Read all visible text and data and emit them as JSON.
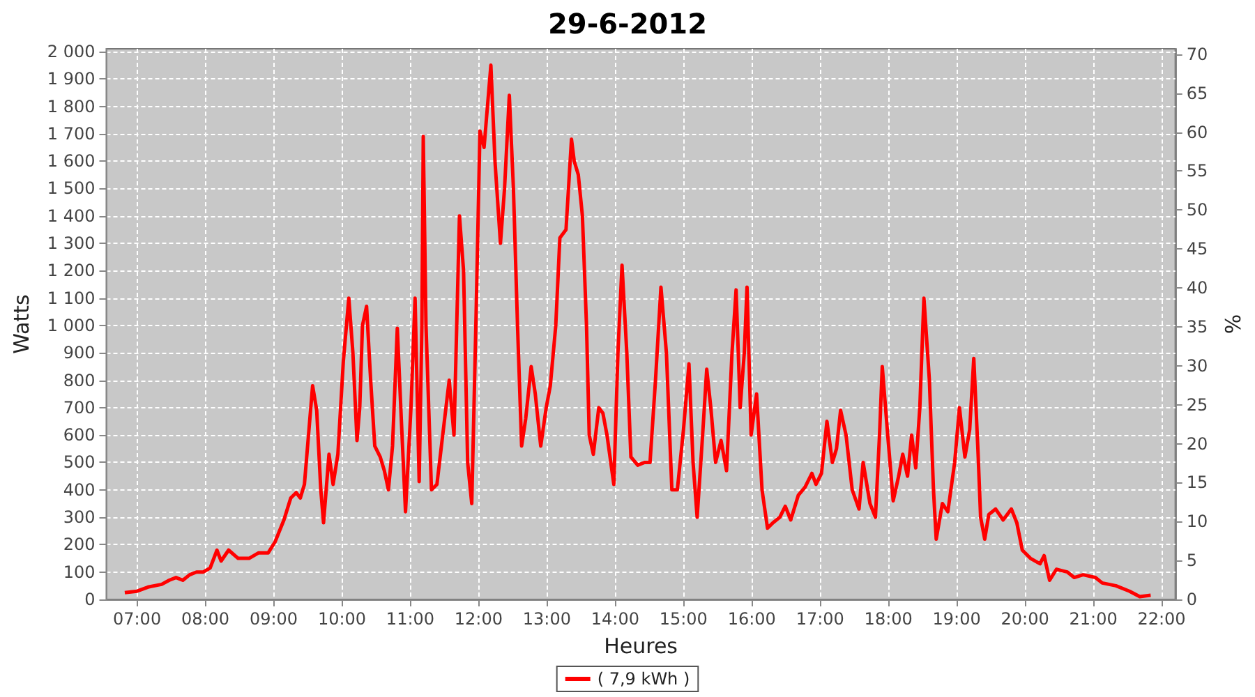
{
  "chart_data": {
    "type": "line",
    "title": "29-6-2012",
    "xlabel": "Heures",
    "ylabel": "Watts",
    "y2label": "%",
    "xlim": [
      6.55,
      22.2
    ],
    "xticks": [
      {
        "value": 7,
        "label": "07:00"
      },
      {
        "value": 8,
        "label": "08:00"
      },
      {
        "value": 9,
        "label": "09:00"
      },
      {
        "value": 10,
        "label": "10:00"
      },
      {
        "value": 11,
        "label": "11:00"
      },
      {
        "value": 12,
        "label": "12:00"
      },
      {
        "value": 13,
        "label": "13:00"
      },
      {
        "value": 14,
        "label": "14:00"
      },
      {
        "value": 15,
        "label": "15:00"
      },
      {
        "value": 16,
        "label": "16:00"
      },
      {
        "value": 17,
        "label": "17:00"
      },
      {
        "value": 18,
        "label": "18:00"
      },
      {
        "value": 19,
        "label": "19:00"
      },
      {
        "value": 20,
        "label": "20:00"
      },
      {
        "value": 21,
        "label": "21:00"
      },
      {
        "value": 22,
        "label": "22:00"
      }
    ],
    "ylim": [
      0,
      2010
    ],
    "yticks": [
      0,
      100,
      200,
      300,
      400,
      500,
      600,
      700,
      800,
      900,
      {
        "value": 1000,
        "label": "1 000"
      },
      {
        "value": 1100,
        "label": "1 100"
      },
      {
        "value": 1200,
        "label": "1 200"
      },
      {
        "value": 1300,
        "label": "1 300"
      },
      {
        "value": 1400,
        "label": "1 400"
      },
      {
        "value": 1500,
        "label": "1 500"
      },
      {
        "value": 1600,
        "label": "1 600"
      },
      {
        "value": 1700,
        "label": "1 700"
      },
      {
        "value": 1800,
        "label": "1 800"
      },
      {
        "value": 1900,
        "label": "1 900"
      },
      {
        "value": 2000,
        "label": "2 000"
      }
    ],
    "y2lim": [
      0,
      70.7
    ],
    "y2ticks": [
      0,
      5,
      10,
      15,
      20,
      25,
      30,
      35,
      40,
      45,
      50,
      55,
      60,
      65,
      70
    ],
    "grid": true,
    "legend": "bottom",
    "marker": "none",
    "line_style": "solid",
    "series": [
      {
        "name": "( 7,9 kWh )",
        "color": "#ff0000",
        "x": [
          6.82,
          7.0,
          7.16,
          7.36,
          7.47,
          7.57,
          7.67,
          7.77,
          7.87,
          7.97,
          8.07,
          8.17,
          8.23,
          8.34,
          8.48,
          8.64,
          8.78,
          8.92,
          9.02,
          9.15,
          9.25,
          9.33,
          9.39,
          9.45,
          9.53,
          9.57,
          9.63,
          9.69,
          9.73,
          9.81,
          9.87,
          9.94,
          10.02,
          10.1,
          10.16,
          10.22,
          10.26,
          10.3,
          10.36,
          10.42,
          10.48,
          10.56,
          10.62,
          10.68,
          10.74,
          10.81,
          10.87,
          10.93,
          11.01,
          11.07,
          11.13,
          11.17,
          11.19,
          11.23,
          11.31,
          11.39,
          11.47,
          11.57,
          11.64,
          11.72,
          11.78,
          11.84,
          11.9,
          11.96,
          12.02,
          12.08,
          12.18,
          12.24,
          12.32,
          12.38,
          12.45,
          12.51,
          12.57,
          12.63,
          12.69,
          12.77,
          12.83,
          12.91,
          12.99,
          13.05,
          13.13,
          13.19,
          13.28,
          13.36,
          13.4,
          13.46,
          13.52,
          13.58,
          13.62,
          13.68,
          13.76,
          13.82,
          13.88,
          13.98,
          14.04,
          14.1,
          14.17,
          14.23,
          14.33,
          14.43,
          14.51,
          14.59,
          14.67,
          14.75,
          14.83,
          14.91,
          15.0,
          15.08,
          15.14,
          15.2,
          15.28,
          15.34,
          15.4,
          15.47,
          15.55,
          15.63,
          15.71,
          15.77,
          15.83,
          15.89,
          15.93,
          15.99,
          16.07,
          16.15,
          16.23,
          16.31,
          16.41,
          16.49,
          16.57,
          16.68,
          16.78,
          16.88,
          16.94,
          17.02,
          17.1,
          17.18,
          17.24,
          17.3,
          17.38,
          17.47,
          17.57,
          17.63,
          17.73,
          17.81,
          17.87,
          17.91,
          17.99,
          18.07,
          18.15,
          18.21,
          18.28,
          18.34,
          18.4,
          18.46,
          18.52,
          18.6,
          18.66,
          18.7,
          18.79,
          18.87,
          18.97,
          19.04,
          19.12,
          19.19,
          19.25,
          19.31,
          19.35,
          19.41,
          19.47,
          19.57,
          19.68,
          19.8,
          19.88,
          19.96,
          20.08,
          20.22,
          20.28,
          20.36,
          20.46,
          20.62,
          20.72,
          20.85,
          21.03,
          21.13,
          21.33,
          21.53,
          21.68,
          21.84
        ],
        "values": [
          25,
          30,
          45,
          55,
          70,
          80,
          70,
          90,
          100,
          100,
          115,
          180,
          140,
          180,
          150,
          150,
          170,
          170,
          210,
          290,
          370,
          390,
          370,
          420,
          660,
          780,
          690,
          400,
          280,
          530,
          420,
          530,
          870,
          1100,
          900,
          580,
          700,
          1000,
          1070,
          800,
          560,
          520,
          470,
          400,
          560,
          990,
          650,
          320,
          700,
          1100,
          430,
          1000,
          1690,
          1000,
          400,
          420,
          590,
          800,
          600,
          1400,
          1200,
          500,
          350,
          1000,
          1710,
          1650,
          1950,
          1600,
          1300,
          1500,
          1840,
          1500,
          1000,
          560,
          660,
          850,
          750,
          560,
          700,
          780,
          1000,
          1320,
          1350,
          1680,
          1600,
          1550,
          1400,
          1000,
          600,
          530,
          700,
          680,
          600,
          420,
          900,
          1220,
          900,
          520,
          490,
          500,
          500,
          800,
          1140,
          900,
          400,
          400,
          620,
          860,
          500,
          300,
          600,
          840,
          700,
          500,
          580,
          470,
          900,
          1130,
          700,
          900,
          1140,
          600,
          750,
          400,
          260,
          280,
          300,
          340,
          290,
          380,
          410,
          460,
          420,
          460,
          650,
          500,
          550,
          690,
          600,
          400,
          330,
          500,
          350,
          300,
          600,
          850,
          600,
          360,
          450,
          530,
          450,
          600,
          480,
          700,
          1100,
          800,
          400,
          220,
          350,
          320,
          500,
          700,
          520,
          620,
          880,
          550,
          300,
          220,
          310,
          330,
          290,
          330,
          280,
          180,
          150,
          130,
          160,
          70,
          110,
          100,
          80,
          90,
          80,
          60,
          50,
          30,
          10,
          15
        ]
      }
    ]
  }
}
